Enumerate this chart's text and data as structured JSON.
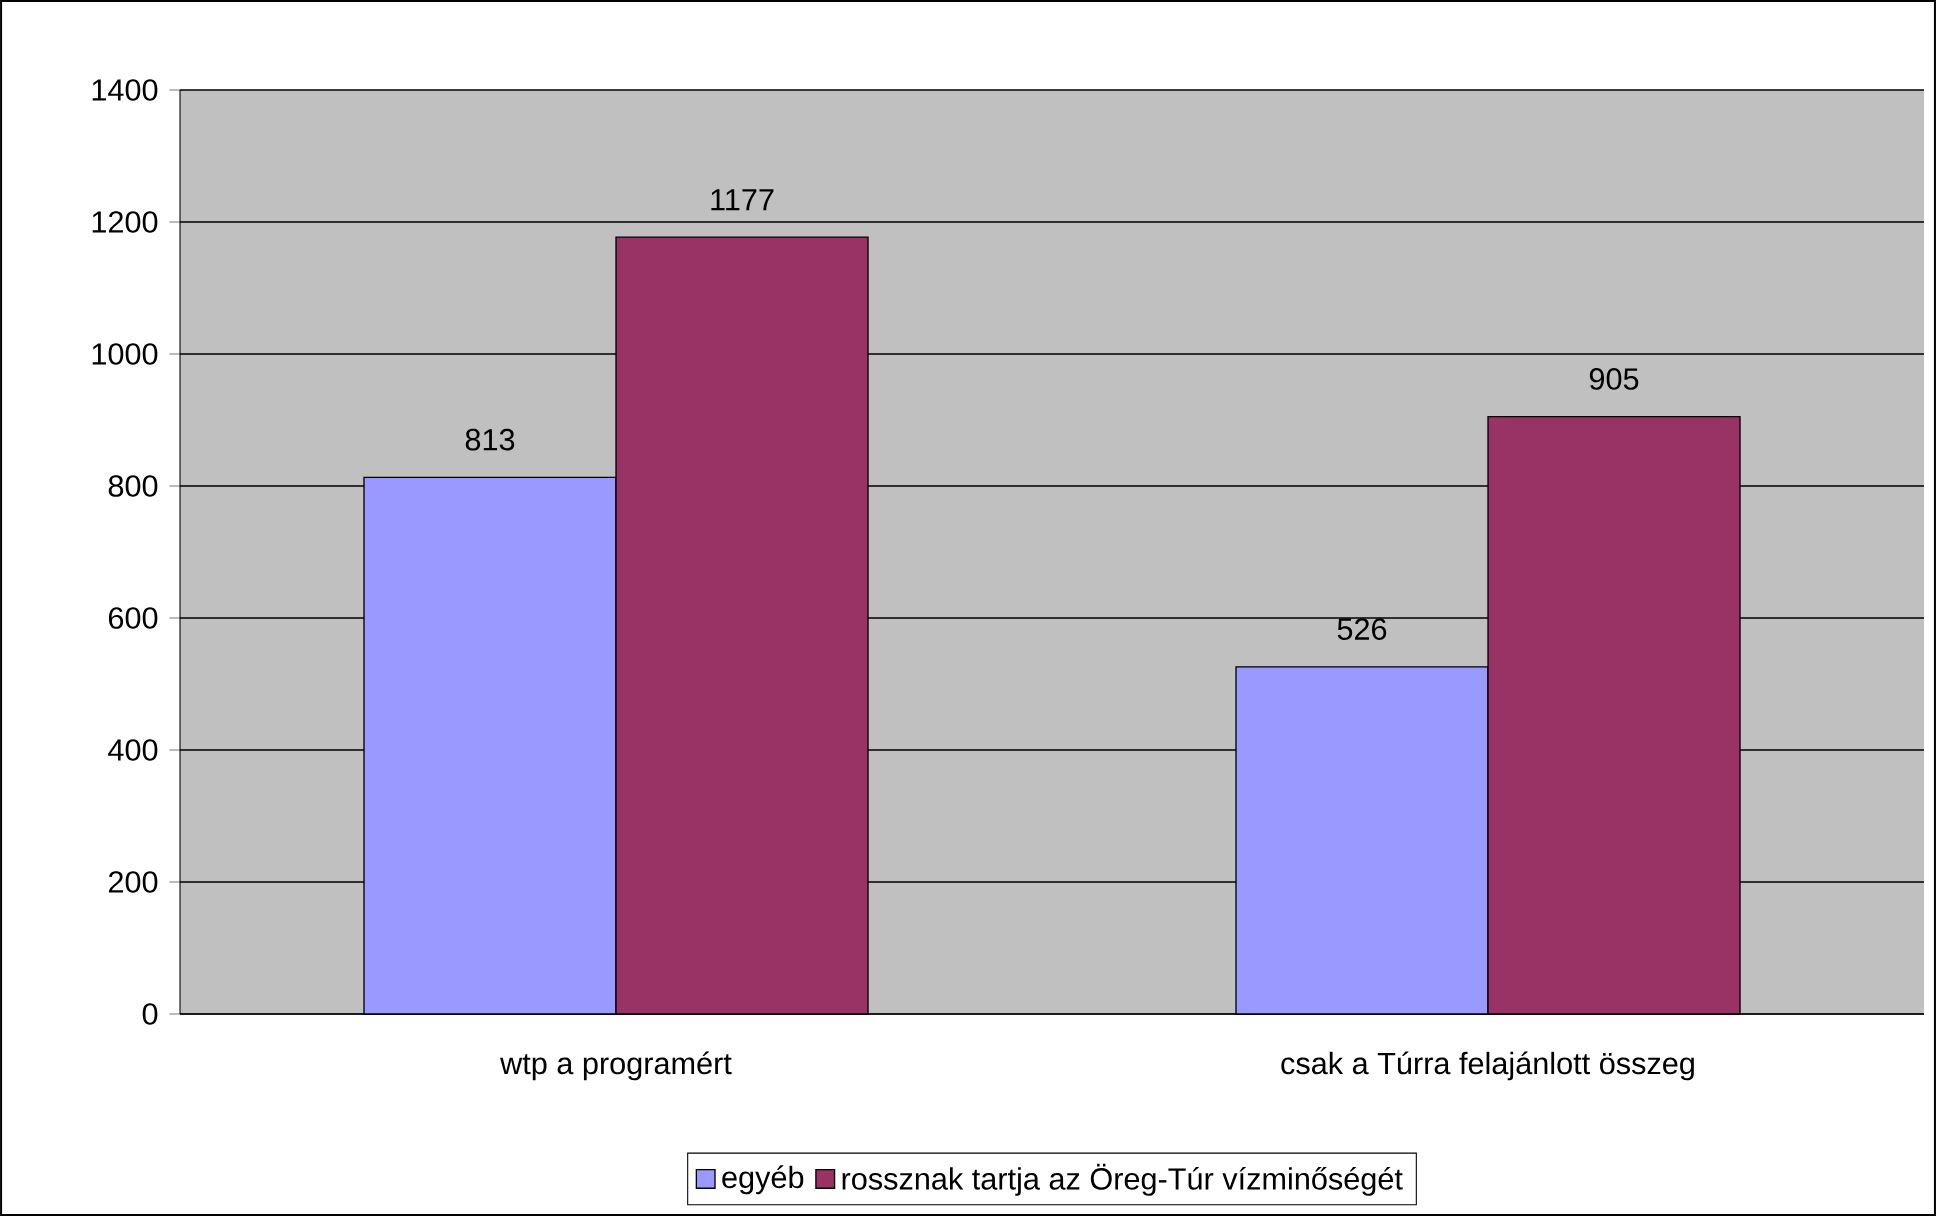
{
  "chart_data": {
    "type": "bar",
    "categories": [
      "wtp a programért",
      "csak a Túrra felajánlott összeg"
    ],
    "series": [
      {
        "name": "egyéb",
        "color": "#9999ff",
        "values": [
          813,
          526
        ]
      },
      {
        "name": "rossznak tartja az Öreg-Túr vízminőségét",
        "color": "#993366",
        "values": [
          1177,
          905
        ]
      }
    ],
    "ylim": [
      0,
      1400
    ],
    "yticks": [
      0,
      200,
      400,
      600,
      800,
      1000,
      1200,
      1400
    ],
    "grid": "y",
    "legend": "bottom",
    "data_labels": true
  }
}
